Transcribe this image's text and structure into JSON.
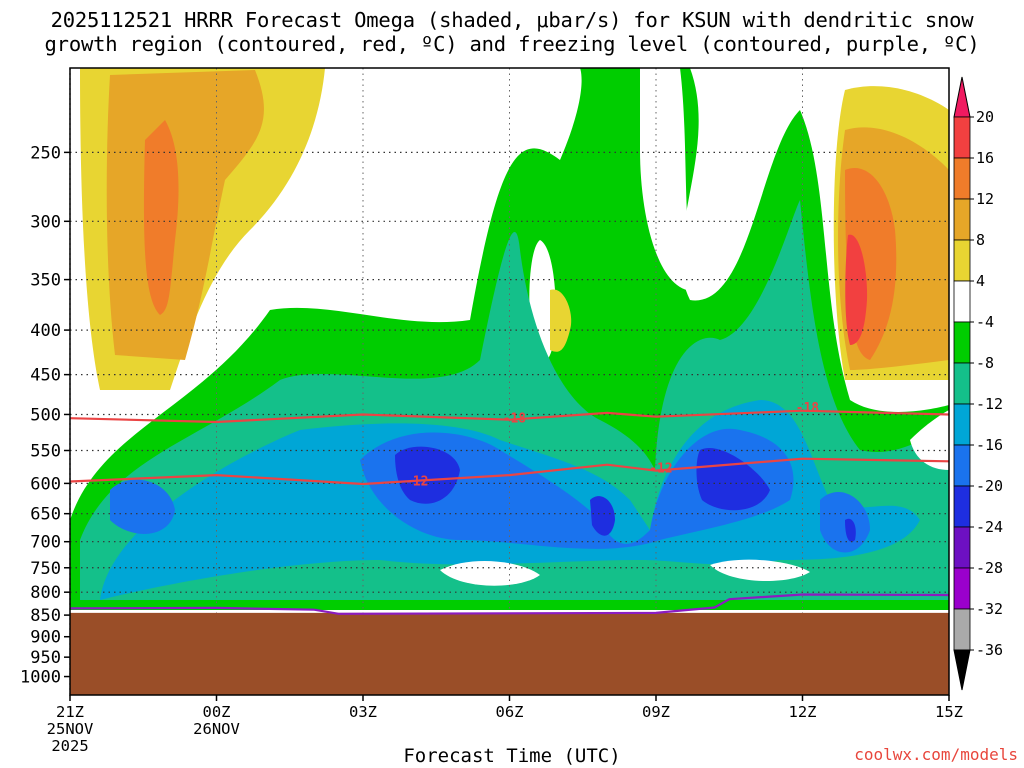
{
  "title_line1": "2025112521 HRRR Forecast Omega (shaded, μbar/s) for KSUN with dendritic snow",
  "title_line2": "growth region (contoured, red, ºC) and freezing level (contoured, purple, ºC)",
  "xlabel": "Forecast Time (UTC)",
  "credit": "coolwx.com/models",
  "chart_data": {
    "type": "heatmap",
    "y_axis": {
      "label": "",
      "scale": "log",
      "inverted": true,
      "ticks": [
        250,
        300,
        350,
        400,
        450,
        500,
        550,
        600,
        650,
        700,
        750,
        800,
        850,
        900,
        950,
        1000
      ],
      "range": [
        200,
        1050
      ]
    },
    "x_axis": {
      "label": "Forecast Time (UTC)",
      "range_hours": [
        0,
        18
      ],
      "ticks": [
        {
          "hour": 0,
          "label": "21Z",
          "date1": "25NOV",
          "date2": "2025"
        },
        {
          "hour": 3,
          "label": "00Z",
          "date1": "26NOV",
          "date2": ""
        },
        {
          "hour": 6,
          "label": "03Z",
          "date1": "",
          "date2": ""
        },
        {
          "hour": 9,
          "label": "06Z",
          "date1": "",
          "date2": ""
        },
        {
          "hour": 12,
          "label": "09Z",
          "date1": "",
          "date2": ""
        },
        {
          "hour": 15,
          "label": "12Z",
          "date1": "",
          "date2": ""
        },
        {
          "hour": 18,
          "label": "15Z",
          "date1": "",
          "date2": ""
        }
      ]
    },
    "colorbar": {
      "unit": "μbar/s",
      "levels": [
        20,
        16,
        12,
        8,
        4,
        -4,
        -8,
        -12,
        -16,
        -20,
        -24,
        -28,
        -32,
        -36
      ],
      "colors": [
        "#f01a60",
        "#f24040",
        "#f07c2a",
        "#e6a628",
        "#e8d532",
        "#ffffff",
        "#00cd00",
        "#14c08a",
        "#00a6d6",
        "#1a73ee",
        "#1e2ee0",
        "#6d10c2",
        "#9a00cc",
        "#aaaaaa",
        "#000000"
      ]
    },
    "contours": [
      {
        "name": "-18",
        "color": "#ea4444",
        "points": [
          [
            0,
            505
          ],
          [
            3,
            510
          ],
          [
            6,
            500
          ],
          [
            9,
            507
          ],
          [
            11,
            498
          ],
          [
            12,
            503
          ],
          [
            15,
            495
          ],
          [
            18,
            500
          ]
        ]
      },
      {
        "name": "-12",
        "color": "#ea4444",
        "points": [
          [
            0,
            597
          ],
          [
            3,
            587
          ],
          [
            6,
            601
          ],
          [
            9,
            587
          ],
          [
            11,
            571
          ],
          [
            12,
            580
          ],
          [
            15,
            562
          ],
          [
            18,
            566
          ]
        ]
      },
      {
        "name": "0",
        "color": "#8b1cc0",
        "points": [
          [
            0,
            835
          ],
          [
            3,
            834
          ],
          [
            5,
            838
          ],
          [
            5.5,
            847
          ],
          [
            12,
            845
          ],
          [
            12.3,
            842
          ],
          [
            13.2,
            833
          ],
          [
            13.5,
            815
          ],
          [
            15,
            805
          ],
          [
            18,
            806
          ]
        ]
      }
    ],
    "terrain_top_hpa": 845,
    "contour_labels": [
      {
        "text": "-18",
        "hour": 9.1,
        "hpa": 511
      },
      {
        "text": "-12",
        "hour": 7.1,
        "hpa": 603
      },
      {
        "text": "-12",
        "hour": 12.1,
        "hpa": 583
      },
      {
        "text": "-18",
        "hour": 15.1,
        "hpa": 497
      }
    ]
  }
}
